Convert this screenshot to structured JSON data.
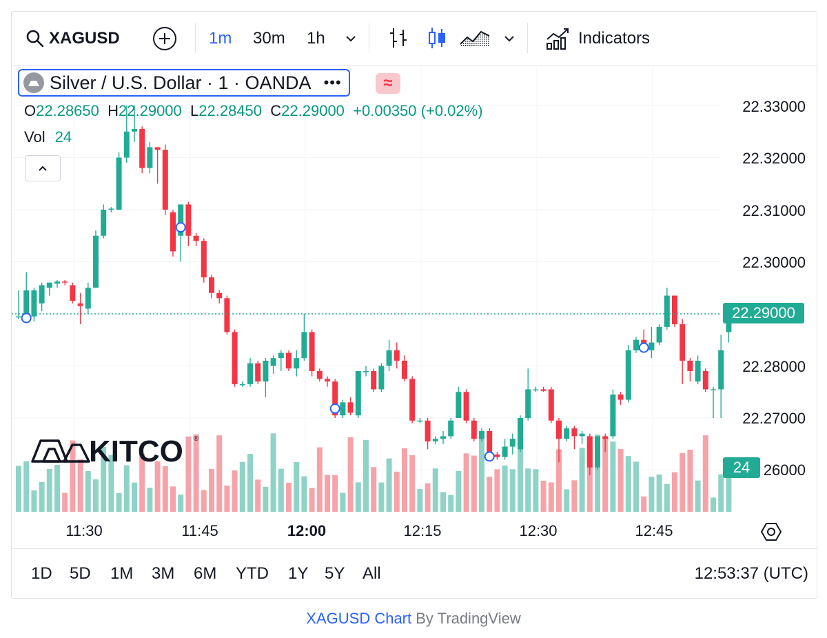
{
  "toolbar": {
    "symbol": "XAGUSD",
    "intervals": [
      "1m",
      "30m",
      "1h"
    ],
    "active_interval": "1m",
    "indicators_label": "Indicators"
  },
  "legend": {
    "title": "Silver / U.S. Dollar · 1 · OANDA",
    "more": "•••",
    "approx": "≈",
    "o_label": "O",
    "o_value": "22.28650",
    "h_label": "H",
    "h_value": "22.29000",
    "l_label": "L",
    "l_value": "22.28450",
    "c_label": "C",
    "c_value": "22.29000",
    "change": "+0.00350 (+0.02%)",
    "vol_label": "Vol",
    "vol_value": "24"
  },
  "price_axis": [
    "22.33000",
    "22.32000",
    "22.31000",
    "22.30000",
    "22.28000",
    "22.27000",
    "26000"
  ],
  "last_price": "22.29000",
  "last_volume": "24",
  "time_axis": [
    "11:30",
    "11:45",
    "12:00",
    "12:15",
    "12:30",
    "12:45"
  ],
  "time_axis_bold": "12:00",
  "ranges": [
    "1D",
    "5D",
    "1M",
    "3M",
    "6M",
    "YTD",
    "1Y",
    "5Y",
    "All"
  ],
  "clock": "12:53:37 (UTC)",
  "watermark": "KITCO",
  "footer": {
    "link": "XAGUSD Chart",
    "by": "By TradingView"
  },
  "colors": {
    "up": "#22ab94",
    "down": "#f23645",
    "up_vol": "#8fd3c7",
    "down_vol": "#f5a3a9",
    "accent": "#2962ff"
  },
  "chart_data": {
    "type": "candlestick",
    "symbol": "XAGUSD",
    "interval": "1m",
    "ylim": [
      22.2585,
      22.335
    ],
    "candles": [
      {
        "o": 22.2895,
        "h": 22.2945,
        "l": 22.289,
        "c": 22.2895
      },
      {
        "o": 22.289,
        "h": 22.298,
        "l": 22.289,
        "c": 22.2945
      },
      {
        "o": 22.2895,
        "h": 22.295,
        "l": 22.2885,
        "c": 22.2945
      },
      {
        "o": 22.292,
        "h": 22.296,
        "l": 22.2905,
        "c": 22.2955
      },
      {
        "o": 22.295,
        "h": 22.296,
        "l": 22.2935,
        "c": 22.296
      },
      {
        "o": 22.2958,
        "h": 22.2965,
        "l": 22.295,
        "c": 22.2962
      },
      {
        "o": 22.2962,
        "h": 22.2965,
        "l": 22.2955,
        "c": 22.296
      },
      {
        "o": 22.2955,
        "h": 22.296,
        "l": 22.292,
        "c": 22.2925
      },
      {
        "o": 22.292,
        "h": 22.294,
        "l": 22.288,
        "c": 22.2915
      },
      {
        "o": 22.291,
        "h": 22.296,
        "l": 22.29,
        "c": 22.295
      },
      {
        "o": 22.295,
        "h": 22.306,
        "l": 22.295,
        "c": 22.305
      },
      {
        "o": 22.305,
        "h": 22.311,
        "l": 22.3045,
        "c": 22.31
      },
      {
        "o": 22.31,
        "h": 22.3105,
        "l": 22.3095,
        "c": 22.3102
      },
      {
        "o": 22.31,
        "h": 22.321,
        "l": 22.31,
        "c": 22.32
      },
      {
        "o": 22.32,
        "h": 22.33,
        "l": 22.319,
        "c": 22.325
      },
      {
        "o": 22.325,
        "h": 22.33,
        "l": 22.323,
        "c": 22.3255
      },
      {
        "o": 22.3255,
        "h": 22.326,
        "l": 22.317,
        "c": 22.318
      },
      {
        "o": 22.318,
        "h": 22.323,
        "l": 22.317,
        "c": 22.322
      },
      {
        "o": 22.322,
        "h": 22.322,
        "l": 22.315,
        "c": 22.3215
      },
      {
        "o": 22.3215,
        "h": 22.3225,
        "l": 22.309,
        "c": 22.31
      },
      {
        "o": 22.3095,
        "h": 22.31,
        "l": 22.301,
        "c": 22.302
      },
      {
        "o": 22.305,
        "h": 22.311,
        "l": 22.3,
        "c": 22.311
      },
      {
        "o": 22.311,
        "h": 22.3115,
        "l": 22.303,
        "c": 22.305
      },
      {
        "o": 22.305,
        "h": 22.3055,
        "l": 22.303,
        "c": 22.304
      },
      {
        "o": 22.304,
        "h": 22.3045,
        "l": 22.296,
        "c": 22.297
      },
      {
        "o": 22.297,
        "h": 22.2975,
        "l": 22.293,
        "c": 22.294
      },
      {
        "o": 22.294,
        "h": 22.2945,
        "l": 22.292,
        "c": 22.293
      },
      {
        "o": 22.293,
        "h": 22.2935,
        "l": 22.286,
        "c": 22.2865
      },
      {
        "o": 22.2865,
        "h": 22.287,
        "l": 22.276,
        "c": 22.2765
      },
      {
        "o": 22.2765,
        "h": 22.277,
        "l": 22.276,
        "c": 22.2765
      },
      {
        "o": 22.2765,
        "h": 22.2815,
        "l": 22.276,
        "c": 22.2805
      },
      {
        "o": 22.2805,
        "h": 22.281,
        "l": 22.2765,
        "c": 22.277
      },
      {
        "o": 22.277,
        "h": 22.2815,
        "l": 22.274,
        "c": 22.281
      },
      {
        "o": 22.28,
        "h": 22.282,
        "l": 22.2785,
        "c": 22.2815
      },
      {
        "o": 22.2815,
        "h": 22.283,
        "l": 22.279,
        "c": 22.2825
      },
      {
        "o": 22.2825,
        "h": 22.283,
        "l": 22.279,
        "c": 22.2795
      },
      {
        "o": 22.2795,
        "h": 22.283,
        "l": 22.278,
        "c": 22.2815
      },
      {
        "o": 22.2815,
        "h": 22.29,
        "l": 22.281,
        "c": 22.2865
      },
      {
        "o": 22.2865,
        "h": 22.287,
        "l": 22.278,
        "c": 22.279
      },
      {
        "o": 22.279,
        "h": 22.2795,
        "l": 22.277,
        "c": 22.2775
      },
      {
        "o": 22.2775,
        "h": 22.278,
        "l": 22.276,
        "c": 22.277
      },
      {
        "o": 22.277,
        "h": 22.2775,
        "l": 22.27,
        "c": 22.2705
      },
      {
        "o": 22.2705,
        "h": 22.2735,
        "l": 22.27,
        "c": 22.273
      },
      {
        "o": 22.273,
        "h": 22.274,
        "l": 22.2705,
        "c": 22.271
      },
      {
        "o": 22.2705,
        "h": 22.279,
        "l": 22.27,
        "c": 22.279
      },
      {
        "o": 22.279,
        "h": 22.28,
        "l": 22.278,
        "c": 22.279
      },
      {
        "o": 22.279,
        "h": 22.2795,
        "l": 22.275,
        "c": 22.2755
      },
      {
        "o": 22.2755,
        "h": 22.2805,
        "l": 22.275,
        "c": 22.28
      },
      {
        "o": 22.28,
        "h": 22.285,
        "l": 22.279,
        "c": 22.283
      },
      {
        "o": 22.283,
        "h": 22.2845,
        "l": 22.2795,
        "c": 22.281
      },
      {
        "o": 22.281,
        "h": 22.282,
        "l": 22.277,
        "c": 22.2775
      },
      {
        "o": 22.2775,
        "h": 22.278,
        "l": 22.269,
        "c": 22.2695
      },
      {
        "o": 22.2695,
        "h": 22.27,
        "l": 22.269,
        "c": 22.2695
      },
      {
        "o": 22.2695,
        "h": 22.27,
        "l": 22.264,
        "c": 22.2655
      },
      {
        "o": 22.2655,
        "h": 22.2665,
        "l": 22.265,
        "c": 22.266
      },
      {
        "o": 22.266,
        "h": 22.2675,
        "l": 22.265,
        "c": 22.2665
      },
      {
        "o": 22.2665,
        "h": 22.27,
        "l": 22.266,
        "c": 22.2695
      },
      {
        "o": 22.27,
        "h": 22.276,
        "l": 22.27,
        "c": 22.275
      },
      {
        "o": 22.275,
        "h": 22.2755,
        "l": 22.269,
        "c": 22.2695
      },
      {
        "o": 22.2695,
        "h": 22.27,
        "l": 22.2655,
        "c": 22.266
      },
      {
        "o": 22.266,
        "h": 22.268,
        "l": 22.2655,
        "c": 22.2675
      },
      {
        "o": 22.2675,
        "h": 22.268,
        "l": 22.262,
        "c": 22.263
      },
      {
        "o": 22.263,
        "h": 22.2635,
        "l": 22.262,
        "c": 22.2625
      },
      {
        "o": 22.2625,
        "h": 22.266,
        "l": 22.262,
        "c": 22.2645
      },
      {
        "o": 22.2645,
        "h": 22.267,
        "l": 22.263,
        "c": 22.266
      },
      {
        "o": 22.264,
        "h": 22.2705,
        "l": 22.2635,
        "c": 22.27
      },
      {
        "o": 22.27,
        "h": 22.2795,
        "l": 22.2695,
        "c": 22.2755
      },
      {
        "o": 22.2755,
        "h": 22.276,
        "l": 22.275,
        "c": 22.2755
      },
      {
        "o": 22.2755,
        "h": 22.276,
        "l": 22.275,
        "c": 22.2752
      },
      {
        "o": 22.2755,
        "h": 22.276,
        "l": 22.269,
        "c": 22.2695
      },
      {
        "o": 22.2695,
        "h": 22.27,
        "l": 22.2615,
        "c": 22.266
      },
      {
        "o": 22.266,
        "h": 22.2685,
        "l": 22.2655,
        "c": 22.268
      },
      {
        "o": 22.268,
        "h": 22.2685,
        "l": 22.264,
        "c": 22.2665
      },
      {
        "o": 22.2665,
        "h": 22.2675,
        "l": 22.265,
        "c": 22.267
      },
      {
        "o": 22.2665,
        "h": 22.267,
        "l": 22.259,
        "c": 22.2605
      },
      {
        "o": 22.2605,
        "h": 22.2665,
        "l": 22.26,
        "c": 22.2665
      },
      {
        "o": 22.2665,
        "h": 22.267,
        "l": 22.2635,
        "c": 22.266
      },
      {
        "o": 22.2665,
        "h": 22.2755,
        "l": 22.266,
        "c": 22.2745
      },
      {
        "o": 22.2745,
        "h": 22.275,
        "l": 22.2725,
        "c": 22.2735
      },
      {
        "o": 22.2735,
        "h": 22.284,
        "l": 22.273,
        "c": 22.283
      },
      {
        "o": 22.283,
        "h": 22.2855,
        "l": 22.2825,
        "c": 22.285
      },
      {
        "o": 22.285,
        "h": 22.287,
        "l": 22.2825,
        "c": 22.283
      },
      {
        "o": 22.283,
        "h": 22.2875,
        "l": 22.2815,
        "c": 22.2845
      },
      {
        "o": 22.2845,
        "h": 22.288,
        "l": 22.284,
        "c": 22.2875
      },
      {
        "o": 22.2875,
        "h": 22.295,
        "l": 22.287,
        "c": 22.2935
      },
      {
        "o": 22.2935,
        "h": 22.2935,
        "l": 22.2875,
        "c": 22.288
      },
      {
        "o": 22.288,
        "h": 22.289,
        "l": 22.2765,
        "c": 22.281
      },
      {
        "o": 22.281,
        "h": 22.2815,
        "l": 22.277,
        "c": 22.279
      },
      {
        "o": 22.277,
        "h": 22.282,
        "l": 22.2765,
        "c": 22.281
      },
      {
        "o": 22.279,
        "h": 22.2795,
        "l": 22.275,
        "c": 22.2755
      },
      {
        "o": 22.2755,
        "h": 22.276,
        "l": 22.27,
        "c": 22.2755
      },
      {
        "o": 22.2755,
        "h": 22.286,
        "l": 22.27,
        "c": 22.283
      },
      {
        "o": 22.2865,
        "h": 22.29,
        "l": 22.2845,
        "c": 22.29
      }
    ]
  }
}
